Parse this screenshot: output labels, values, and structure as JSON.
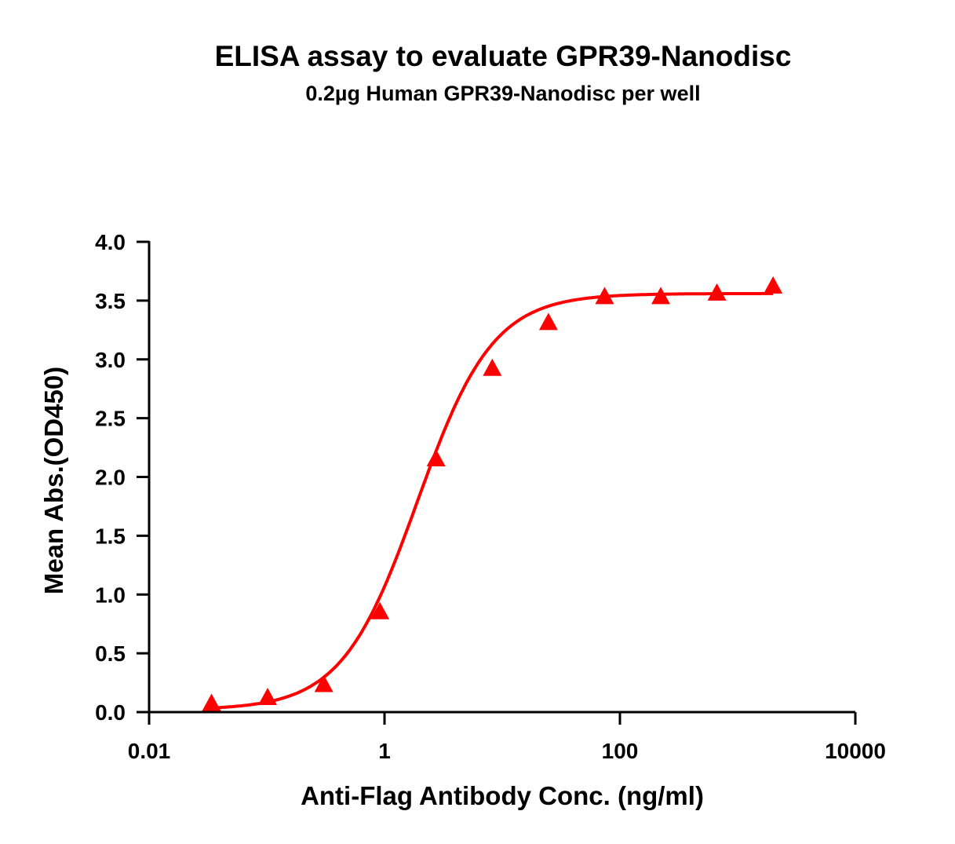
{
  "chart_data": {
    "type": "scatter",
    "title": "ELISA assay to evaluate GPR39-Nanodisc",
    "subtitle": "0.2µg Human GPR39-Nanodisc per well",
    "xlabel": "Anti-Flag Antibody Conc. (ng/ml)",
    "ylabel": "Mean Abs.(OD450)",
    "x_scale": "log",
    "xlim": [
      0.01,
      10000
    ],
    "ylim": [
      0,
      4.0
    ],
    "x_ticks": [
      "0.01",
      "1",
      "100",
      "10000"
    ],
    "x_tick_values": [
      0.01,
      1,
      100,
      10000
    ],
    "y_ticks": [
      "0.0",
      "0.5",
      "1.0",
      "1.5",
      "2.0",
      "2.5",
      "3.0",
      "3.5",
      "4.0"
    ],
    "y_tick_values": [
      0,
      0.5,
      1.0,
      1.5,
      2.0,
      2.5,
      3.0,
      3.5,
      4.0
    ],
    "grid": false,
    "series": [
      {
        "marker": "triangle",
        "color": "#ff0000",
        "x": [
          0.0339,
          0.1016,
          0.305,
          0.914,
          2.74,
          8.23,
          24.7,
          74.1,
          222.2,
          666.7,
          2000
        ],
        "y": [
          0.07,
          0.12,
          0.23,
          0.85,
          2.15,
          2.92,
          3.31,
          3.53,
          3.53,
          3.56,
          3.62
        ],
        "fit": {
          "model": "4PL",
          "bottom": 0.02,
          "top": 3.56,
          "ec50": 1.9,
          "hill": 1.35
        }
      }
    ]
  }
}
